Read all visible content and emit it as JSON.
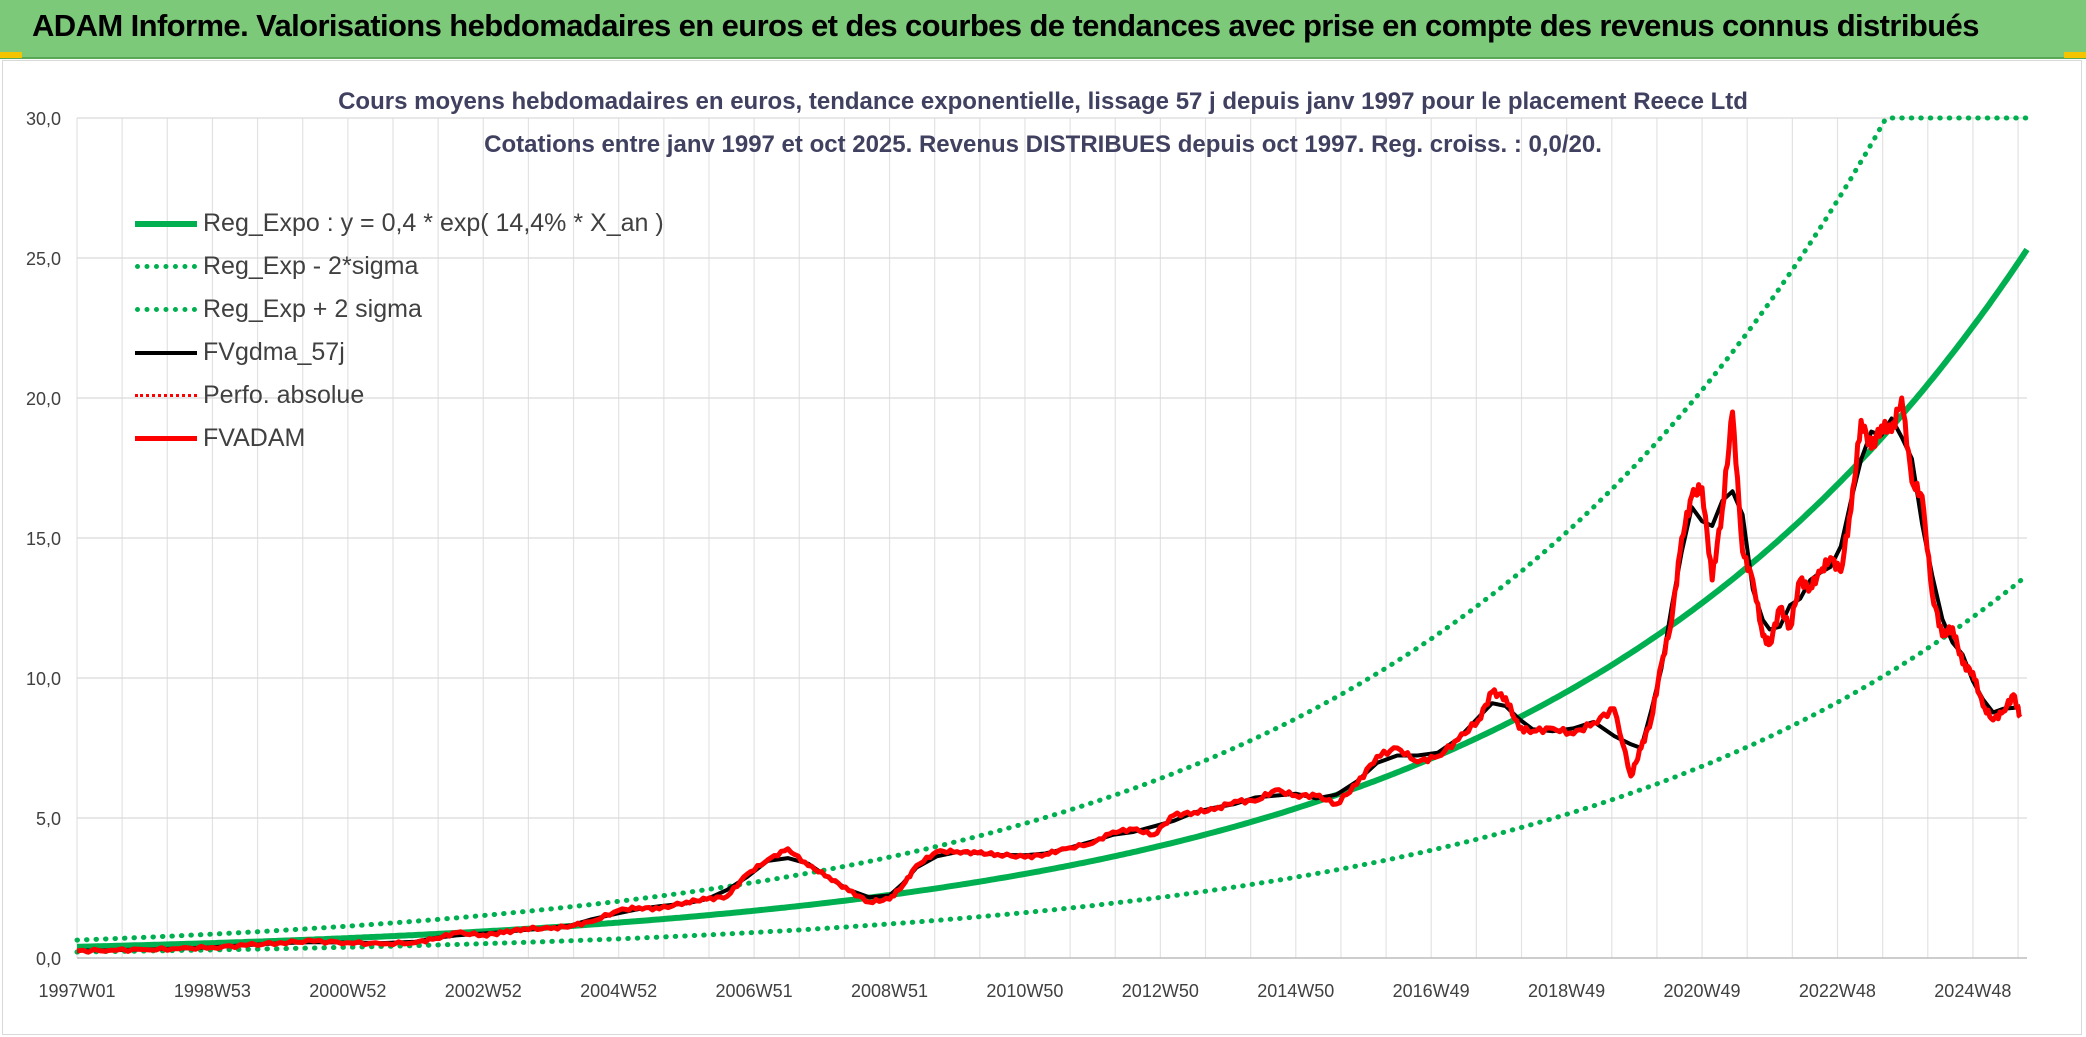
{
  "header": {
    "title": "ADAM Informe. Valorisations hebdomadaires en euros et des courbes de tendances avec prise en compte des revenus connus distribués"
  },
  "colors": {
    "header_bg": "#7dc97a",
    "green": "#00b050",
    "red": "#ff0000",
    "black": "#000000",
    "grid": "#d9d9d9"
  },
  "chart_data": {
    "type": "line",
    "title_line1": "Cours moyens hebdomadaires en euros, tendance exponentielle, lissage 57 j depuis janv 1997 pour le placement Reece Ltd",
    "title_line2": "Cotations entre janv 1997 et oct 2025. Revenus DISTRIBUES depuis oct 1997. Reg. croiss. : 0,0/20.",
    "xlabel": "",
    "ylabel": "",
    "x_range": [
      1997.0,
      2025.8
    ],
    "ylim": [
      0,
      30
    ],
    "yticks": [
      "0,0",
      "5,0",
      "10,0",
      "15,0",
      "20,0",
      "25,0",
      "30,0"
    ],
    "ytick_values": [
      0,
      5,
      10,
      15,
      20,
      25,
      30
    ],
    "xticks": [
      "1997W01",
      "1998W53",
      "2000W52",
      "2002W52",
      "2004W52",
      "2006W51",
      "2008W51",
      "2010W50",
      "2012W50",
      "2014W50",
      "2016W49",
      "2018W49",
      "2020W49",
      "2022W48",
      "2024W48"
    ],
    "xtick_years": [
      1997.0,
      1999.0,
      2001.0,
      2003.0,
      2005.0,
      2007.0,
      2009.0,
      2011.0,
      2013.0,
      2015.0,
      2017.0,
      2019.0,
      2021.0,
      2023.0,
      2025.0
    ],
    "grid": true,
    "legend_position": "top-left",
    "legend": [
      {
        "name": "Reg_Expo : y = 0,4 * exp( 14,4% *  X_an )",
        "color": "#00b050",
        "style": "solid"
      },
      {
        "name": "Reg_Exp - 2*sigma",
        "color": "#00b050",
        "style": "dotted"
      },
      {
        "name": "Reg_Exp + 2 sigma",
        "color": "#00b050",
        "style": "dotted"
      },
      {
        "name": "FVgdma_57j",
        "color": "#000000",
        "style": "solid"
      },
      {
        "name": "Perfo. absolue",
        "color": "#ff0000",
        "style": "dotted"
      },
      {
        "name": "FVADAM",
        "color": "#ff0000",
        "style": "solid"
      }
    ],
    "regression": {
      "a": 0.4,
      "rate": 0.144,
      "t0": 1997.0,
      "lower_factor": 0.54,
      "upper_factor": 1.6,
      "cap": 30
    },
    "series": [
      {
        "name": "FVADAM",
        "x": [
          1997.0,
          1997.5,
          1998.0,
          1998.5,
          1999.0,
          1999.5,
          2000.0,
          2000.5,
          2001.0,
          2001.5,
          2002.0,
          2002.3,
          2002.6,
          2003.0,
          2003.3,
          2003.6,
          2004.0,
          2004.3,
          2004.6,
          2005.0,
          2005.3,
          2005.6,
          2006.0,
          2006.3,
          2006.6,
          2006.9,
          2007.2,
          2007.5,
          2007.8,
          2008.1,
          2008.4,
          2008.7,
          2009.0,
          2009.2,
          2009.4,
          2009.7,
          2010.0,
          2010.3,
          2010.6,
          2011.0,
          2011.3,
          2011.6,
          2012.0,
          2012.3,
          2012.6,
          2012.9,
          2013.2,
          2013.5,
          2013.8,
          2014.1,
          2014.4,
          2014.7,
          2015.0,
          2015.3,
          2015.6,
          2015.9,
          2016.2,
          2016.5,
          2016.8,
          2017.1,
          2017.4,
          2017.7,
          2017.9,
          2018.1,
          2018.3,
          2018.5,
          2018.8,
          2019.1,
          2019.4,
          2019.7,
          2019.95,
          2020.1,
          2020.25,
          2020.4,
          2020.55,
          2020.7,
          2020.85,
          2021.0,
          2021.15,
          2021.3,
          2021.45,
          2021.6,
          2021.75,
          2021.9,
          2022.0,
          2022.15,
          2022.3,
          2022.45,
          2022.6,
          2022.75,
          2022.9,
          2023.05,
          2023.2,
          2023.35,
          2023.5,
          2023.65,
          2023.8,
          2023.95,
          2024.1,
          2024.25,
          2024.4,
          2024.55,
          2024.7,
          2024.85,
          2025.0,
          2025.15,
          2025.3,
          2025.45,
          2025.6,
          2025.7
        ],
        "values": [
          0.25,
          0.28,
          0.3,
          0.33,
          0.38,
          0.45,
          0.55,
          0.6,
          0.55,
          0.5,
          0.55,
          0.7,
          0.9,
          0.82,
          0.9,
          1.05,
          1.05,
          1.15,
          1.3,
          1.7,
          1.8,
          1.75,
          2.0,
          2.1,
          2.2,
          3.0,
          3.5,
          3.9,
          3.3,
          2.9,
          2.4,
          2.0,
          2.1,
          2.6,
          3.3,
          3.8,
          3.8,
          3.75,
          3.7,
          3.6,
          3.7,
          3.9,
          4.1,
          4.5,
          4.6,
          4.4,
          5.1,
          5.2,
          5.3,
          5.6,
          5.6,
          6.0,
          5.8,
          5.8,
          5.5,
          6.2,
          7.2,
          7.5,
          7.0,
          7.2,
          7.8,
          8.5,
          9.5,
          9.3,
          8.2,
          8.1,
          8.2,
          8.0,
          8.4,
          8.9,
          6.5,
          7.5,
          8.5,
          10.5,
          12.0,
          15.0,
          16.5,
          16.8,
          13.5,
          16.0,
          19.5,
          14.5,
          13.5,
          11.5,
          11.2,
          12.5,
          11.8,
          13.5,
          13.2,
          13.8,
          14.3,
          13.8,
          16.0,
          19.2,
          18.2,
          19.0,
          18.8,
          20.0,
          17.0,
          16.5,
          13.0,
          11.5,
          11.8,
          10.5,
          10.2,
          9.0,
          8.5,
          8.8,
          9.4,
          8.6
        ]
      }
    ]
  }
}
